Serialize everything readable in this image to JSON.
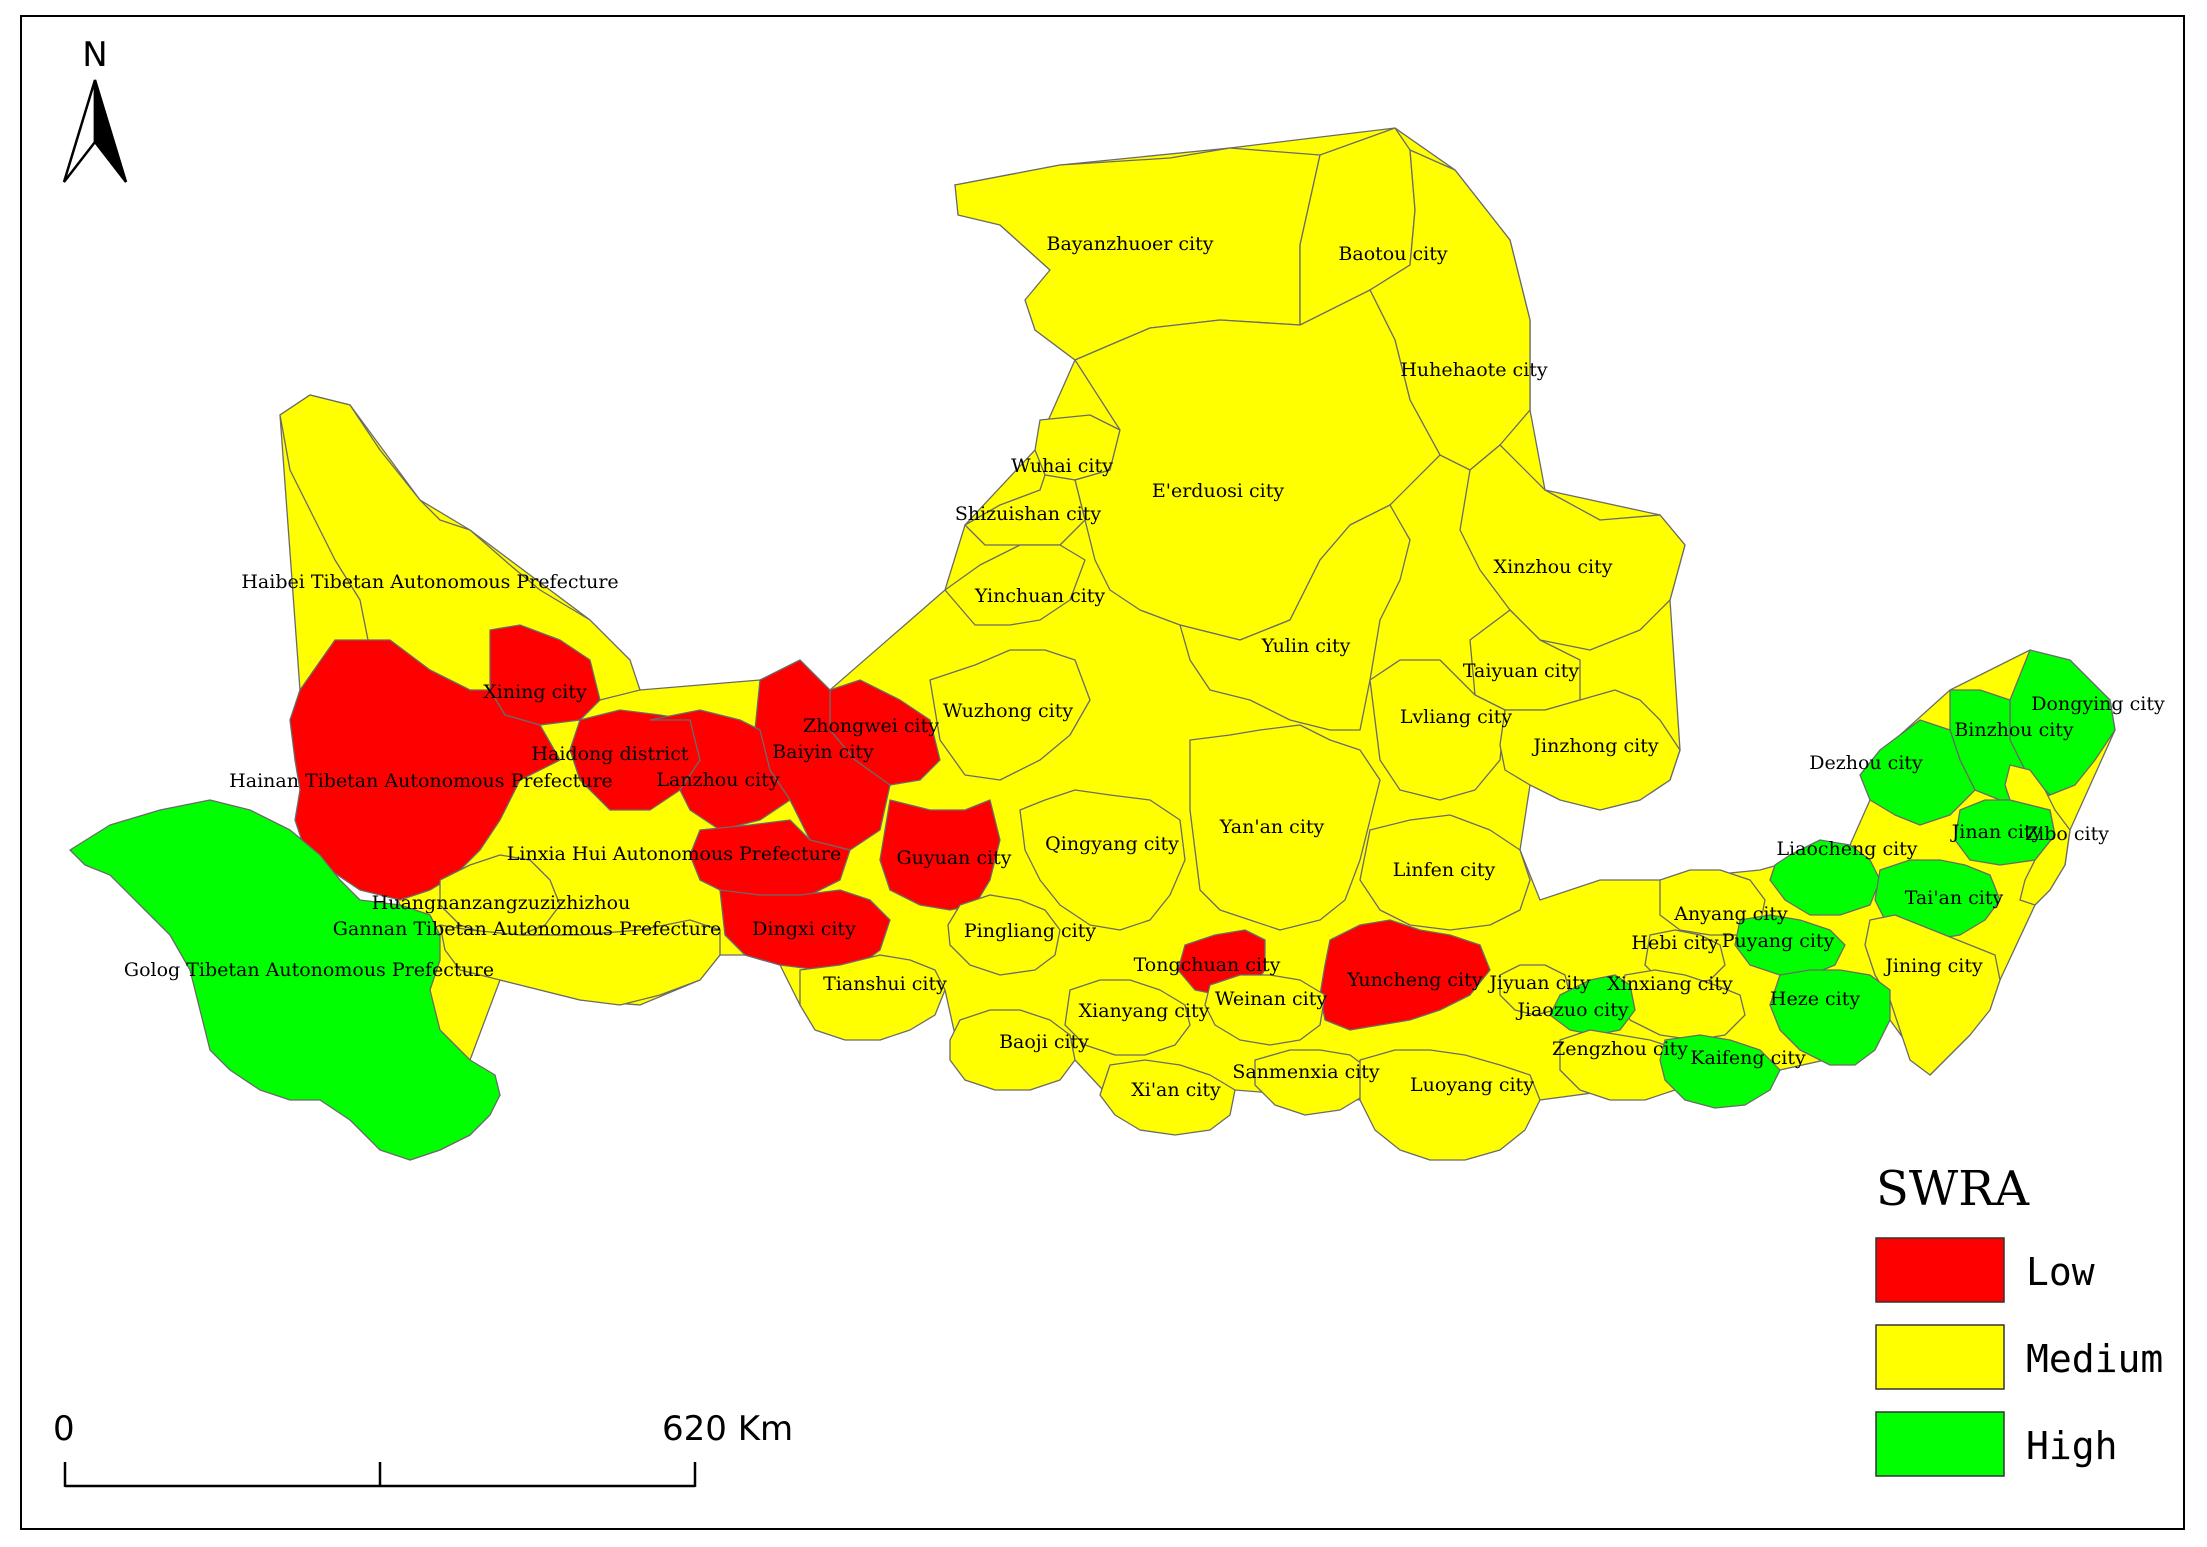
{
  "colors": {
    "Low": "#ff0000",
    "Medium": "#ffff00",
    "High": "#00ff00"
  },
  "north": "N",
  "legend": {
    "title": "SWRA",
    "items": [
      {
        "label": "Low",
        "class": "Low"
      },
      {
        "label": "Medium",
        "class": "Medium"
      },
      {
        "label": "High",
        "class": "High"
      }
    ]
  },
  "scale": {
    "start": "0",
    "end": "620 Km"
  },
  "regions": [
    {
      "name": "Bayanzhuoer city",
      "class": "Medium"
    },
    {
      "name": "Baotou city",
      "class": "Medium"
    },
    {
      "name": "Huhehaote city",
      "class": "Medium"
    },
    {
      "name": "Wuhai city",
      "class": "Medium"
    },
    {
      "name": "E'erduosi city",
      "class": "Medium"
    },
    {
      "name": "Shizuishan city",
      "class": "Medium"
    },
    {
      "name": "Xinzhou city",
      "class": "Medium"
    },
    {
      "name": "Haibei Tibetan Autonomous Prefecture",
      "class": "Medium"
    },
    {
      "name": "Yinchuan city",
      "class": "Medium"
    },
    {
      "name": "Yulin city",
      "class": "Medium"
    },
    {
      "name": "Taiyuan city",
      "class": "Medium"
    },
    {
      "name": "Xining city",
      "class": "Low"
    },
    {
      "name": "Wuzhong city",
      "class": "Medium"
    },
    {
      "name": "Lvliang city",
      "class": "Medium"
    },
    {
      "name": "Zhongwei city",
      "class": "Low"
    },
    {
      "name": "Dongying city",
      "class": "High"
    },
    {
      "name": "Binzhou city",
      "class": "High"
    },
    {
      "name": "Haidong district",
      "class": "Low"
    },
    {
      "name": "Baiyin city",
      "class": "Low"
    },
    {
      "name": "Jinzhong city",
      "class": "Medium"
    },
    {
      "name": "Dezhou city",
      "class": "High"
    },
    {
      "name": "Hainan Tibetan Autonomous Prefecture",
      "class": "Low"
    },
    {
      "name": "Lanzhou city",
      "class": "Low"
    },
    {
      "name": "Yan'an city",
      "class": "Medium"
    },
    {
      "name": "Jinan city",
      "class": "High"
    },
    {
      "name": "Zibo city",
      "class": "Medium"
    },
    {
      "name": "Qingyang city",
      "class": "Medium"
    },
    {
      "name": "Linxia Hui Autonomous Prefecture",
      "class": "Low"
    },
    {
      "name": "Guyuan city",
      "class": "Low"
    },
    {
      "name": "Liaocheng city",
      "class": "High"
    },
    {
      "name": "Linfen city",
      "class": "Medium"
    },
    {
      "name": "Tai'an city",
      "class": "High"
    },
    {
      "name": "Huangnanzangzuzizhizhou",
      "class": "Medium"
    },
    {
      "name": "Anyang city",
      "class": "Medium"
    },
    {
      "name": "Gannan Tibetan Autonomous Prefecture",
      "class": "Medium"
    },
    {
      "name": "Dingxi city",
      "class": "Low"
    },
    {
      "name": "Pingliang city",
      "class": "Medium"
    },
    {
      "name": "Hebi city",
      "class": "Medium"
    },
    {
      "name": "Puyang city",
      "class": "High"
    },
    {
      "name": "Tongchuan city",
      "class": "Low"
    },
    {
      "name": "Jining city",
      "class": "Medium"
    },
    {
      "name": "Golog Tibetan Autonomous Prefecture",
      "class": "High"
    },
    {
      "name": "Yuncheng city",
      "class": "Low"
    },
    {
      "name": "Jiyuan city",
      "class": "Medium"
    },
    {
      "name": "Tianshui city",
      "class": "Medium"
    },
    {
      "name": "Xinxiang city",
      "class": "Medium"
    },
    {
      "name": "Weinan city",
      "class": "Medium"
    },
    {
      "name": "Heze city",
      "class": "High"
    },
    {
      "name": "Jiaozuo city",
      "class": "High"
    },
    {
      "name": "Xianyang city",
      "class": "Medium"
    },
    {
      "name": "Baoji city",
      "class": "Medium"
    },
    {
      "name": "Zengzhou city",
      "class": "Medium"
    },
    {
      "name": "Kaifeng city",
      "class": "High"
    },
    {
      "name": "Sanmenxia city",
      "class": "Medium"
    },
    {
      "name": "Luoyang city",
      "class": "Medium"
    },
    {
      "name": "Xi'an city",
      "class": "Medium"
    }
  ]
}
